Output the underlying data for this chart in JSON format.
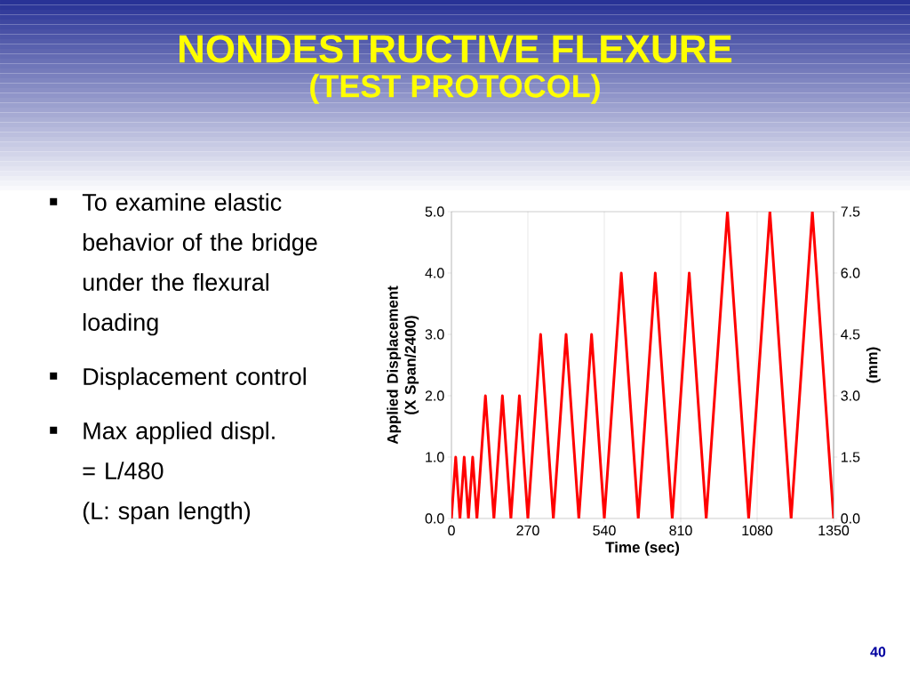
{
  "chart_data": {
    "type": "line",
    "title": "NONDESTRUCTIVE FLEXURE",
    "subtitle": "(TEST PROTOCOL)",
    "xlabel": "Time (sec)",
    "ylabel": "Applied Displacement (X Span/2400)",
    "y2label": "(mm)",
    "x": [
      0,
      15,
      30,
      45,
      60,
      75,
      90,
      120,
      150,
      180,
      210,
      240,
      270,
      315,
      360,
      405,
      450,
      495,
      540,
      600,
      660,
      720,
      780,
      840,
      900,
      975,
      1050,
      1125,
      1200,
      1275,
      1350
    ],
    "series": [
      {
        "color": "#ff0000",
        "values": [
          0,
          1,
          0,
          1,
          0,
          1,
          0,
          2,
          0,
          2,
          0,
          2,
          0,
          3,
          0,
          3,
          0,
          3,
          0,
          4,
          0,
          4,
          0,
          4,
          0,
          5,
          0,
          5,
          0,
          5,
          0
        ]
      }
    ],
    "xlim": [
      0,
      1350
    ],
    "xticks": [
      0,
      270,
      540,
      810,
      1080,
      1350
    ],
    "ylim": [
      0,
      5
    ],
    "yticks": [
      {
        "value": 0,
        "label": "0.0"
      },
      {
        "value": 1,
        "label": "1.0"
      },
      {
        "value": 2,
        "label": "2.0"
      },
      {
        "value": 3,
        "label": "3.0"
      },
      {
        "value": 4,
        "label": "4.0"
      },
      {
        "value": 5,
        "label": "5.0"
      }
    ],
    "y2lim": [
      0,
      7.5
    ],
    "y2ticks": [
      {
        "value": 0,
        "label": "0.0"
      },
      {
        "value": 1.5,
        "label": "1.5"
      },
      {
        "value": 3,
        "label": "3.0"
      },
      {
        "value": 4.5,
        "label": "4.5"
      },
      {
        "value": 6,
        "label": "6.0"
      },
      {
        "value": 7.5,
        "label": "7.5"
      }
    ],
    "grid": "x",
    "line_style": "solid",
    "annotations": [
      "To examine elastic behavior of the bridge under the flexural loading",
      "Displacement control",
      "Max applied displ.",
      "= L/480",
      "(L: span length)",
      "40"
    ]
  }
}
